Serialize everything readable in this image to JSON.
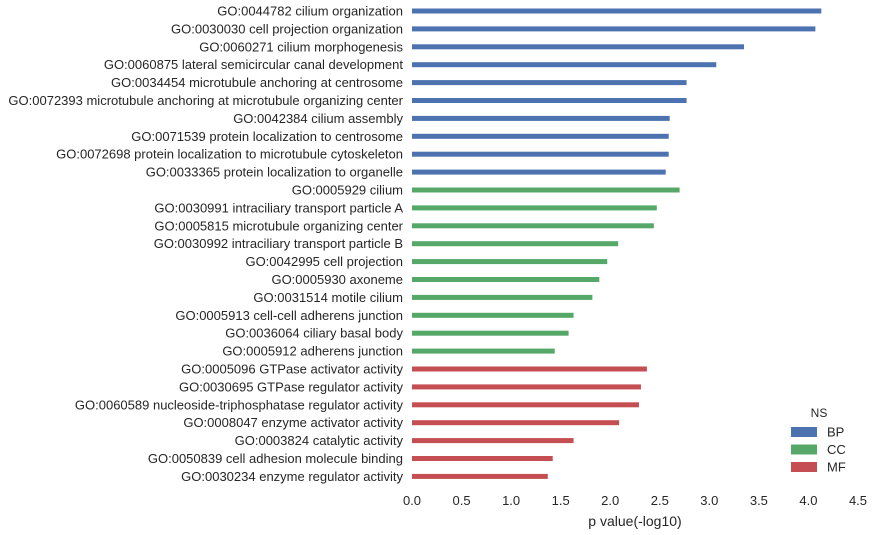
{
  "chart_data": {
    "type": "bar",
    "orientation": "horizontal",
    "xlabel": "p value(-log10)",
    "xlim": [
      0,
      4.5
    ],
    "xticks": [
      "0.0",
      "0.5",
      "1.0",
      "1.5",
      "2.0",
      "2.5",
      "3.0",
      "3.5",
      "4.0",
      "4.5"
    ],
    "grid": false,
    "legend": {
      "title": "NS",
      "position": "bottom-right",
      "entries": [
        {
          "name": "BP",
          "color": "#4c72b0"
        },
        {
          "name": "CC",
          "color": "#55a868"
        },
        {
          "name": "MF",
          "color": "#c44e52"
        }
      ]
    },
    "bars": [
      {
        "label": "GO:0044782 cilium organization",
        "value": 4.13,
        "ns": "BP"
      },
      {
        "label": "GO:0030030 cell projection organization",
        "value": 4.07,
        "ns": "BP"
      },
      {
        "label": "GO:0060271 cilium morphogenesis",
        "value": 3.35,
        "ns": "BP"
      },
      {
        "label": "GO:0060875 lateral semicircular canal development",
        "value": 3.07,
        "ns": "BP"
      },
      {
        "label": "GO:0034454 microtubule anchoring at centrosome",
        "value": 2.77,
        "ns": "BP"
      },
      {
        "label": "GO:0072393 microtubule anchoring at microtubule organizing center",
        "value": 2.77,
        "ns": "BP"
      },
      {
        "label": "GO:0042384 cilium assembly",
        "value": 2.6,
        "ns": "BP"
      },
      {
        "label": "GO:0071539 protein localization to centrosome",
        "value": 2.59,
        "ns": "BP"
      },
      {
        "label": "GO:0072698 protein localization to microtubule cytoskeleton",
        "value": 2.59,
        "ns": "BP"
      },
      {
        "label": "GO:0033365 protein localization to organelle",
        "value": 2.56,
        "ns": "BP"
      },
      {
        "label": "GO:0005929 cilium",
        "value": 2.7,
        "ns": "CC"
      },
      {
        "label": "GO:0030991 intraciliary transport particle A",
        "value": 2.47,
        "ns": "CC"
      },
      {
        "label": "GO:0005815 microtubule organizing center",
        "value": 2.44,
        "ns": "CC"
      },
      {
        "label": "GO:0030992 intraciliary transport particle B",
        "value": 2.08,
        "ns": "CC"
      },
      {
        "label": "GO:0042995 cell projection",
        "value": 1.97,
        "ns": "CC"
      },
      {
        "label": "GO:0005930 axoneme",
        "value": 1.89,
        "ns": "CC"
      },
      {
        "label": "GO:0031514 motile cilium",
        "value": 1.82,
        "ns": "CC"
      },
      {
        "label": "GO:0005913 cell-cell adherens junction",
        "value": 1.63,
        "ns": "CC"
      },
      {
        "label": "GO:0036064 ciliary basal body",
        "value": 1.58,
        "ns": "CC"
      },
      {
        "label": "GO:0005912 adherens junction",
        "value": 1.44,
        "ns": "CC"
      },
      {
        "label": "GO:0005096 GTPase activator activity",
        "value": 2.37,
        "ns": "MF"
      },
      {
        "label": "GO:0030695 GTPase regulator activity",
        "value": 2.31,
        "ns": "MF"
      },
      {
        "label": "GO:0060589 nucleoside-triphosphatase regulator activity",
        "value": 2.29,
        "ns": "MF"
      },
      {
        "label": "GO:0008047 enzyme activator activity",
        "value": 2.09,
        "ns": "MF"
      },
      {
        "label": "GO:0003824 catalytic activity",
        "value": 1.63,
        "ns": "MF"
      },
      {
        "label": "GO:0050839 cell adhesion molecule binding",
        "value": 1.42,
        "ns": "MF"
      },
      {
        "label": "GO:0030234 enzyme regulator activity",
        "value": 1.37,
        "ns": "MF"
      }
    ]
  }
}
